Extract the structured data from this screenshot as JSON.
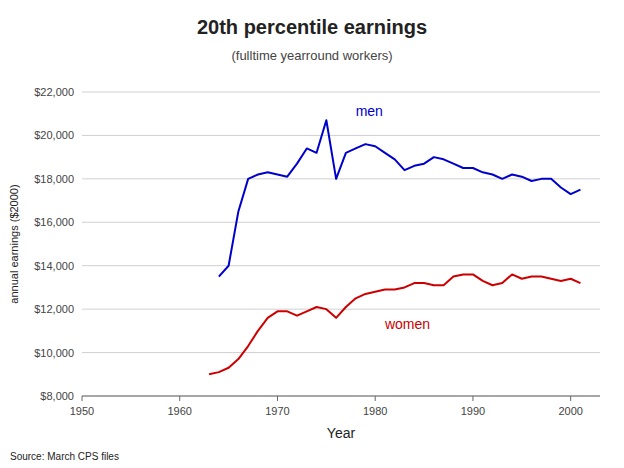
{
  "chart_data": {
    "type": "line",
    "title": "20th percentile earnings",
    "subtitle": "(fulltime yearround workers)",
    "xlabel": "Year",
    "ylabel": "annual earnings ($2000)",
    "source": "Source: March CPS files",
    "xlim": [
      1950,
      2003
    ],
    "ylim": [
      8000,
      22000
    ],
    "xticks": [
      1950,
      1960,
      1970,
      1980,
      1990,
      2000
    ],
    "yticks": [
      {
        "value": 8000,
        "label": "$8,000"
      },
      {
        "value": 10000,
        "label": "$10,000"
      },
      {
        "value": 12000,
        "label": "$12,000"
      },
      {
        "value": 14000,
        "label": "$14,000"
      },
      {
        "value": 16000,
        "label": "$16,000"
      },
      {
        "value": 18000,
        "label": "$18,000"
      },
      {
        "value": 20000,
        "label": "$20,000"
      },
      {
        "value": 22000,
        "label": "$22,000"
      }
    ],
    "grid": true,
    "x": [
      1963,
      1964,
      1965,
      1966,
      1967,
      1968,
      1969,
      1970,
      1971,
      1972,
      1973,
      1974,
      1975,
      1976,
      1977,
      1978,
      1979,
      1980,
      1981,
      1982,
      1983,
      1984,
      1985,
      1986,
      1987,
      1988,
      1989,
      1990,
      1991,
      1992,
      1993,
      1994,
      1995,
      1996,
      1997,
      1998,
      1999,
      2000,
      2001
    ],
    "series": [
      {
        "name": "men",
        "color": "#0000cc",
        "values": [
          null,
          13500,
          14000,
          16500,
          18000,
          18200,
          18300,
          18200,
          18100,
          18700,
          19400,
          19200,
          20700,
          18000,
          19200,
          19400,
          19600,
          19500,
          19200,
          18900,
          18400,
          18600,
          18700,
          19000,
          18900,
          18700,
          18500,
          18500,
          18300,
          18200,
          18000,
          18200,
          18100,
          17900,
          18000,
          18000,
          17600,
          17300,
          17500
        ]
      },
      {
        "name": "women",
        "color": "#cc0000",
        "values": [
          9000,
          9100,
          9300,
          9700,
          10300,
          11000,
          11600,
          11900,
          11900,
          11700,
          11900,
          12100,
          12000,
          11600,
          12100,
          12500,
          12700,
          12800,
          12900,
          12900,
          13000,
          13200,
          13200,
          13100,
          13100,
          13500,
          13600,
          13600,
          13300,
          13100,
          13200,
          13600,
          13400,
          13500,
          13500,
          13400,
          13300,
          13400,
          13200
        ]
      }
    ],
    "annotations": [
      {
        "text": "men",
        "x": 1978,
        "y": 20900,
        "color": "#0000cc"
      },
      {
        "text": "women",
        "x": 1981,
        "y": 11100,
        "color": "#cc0000"
      }
    ]
  }
}
